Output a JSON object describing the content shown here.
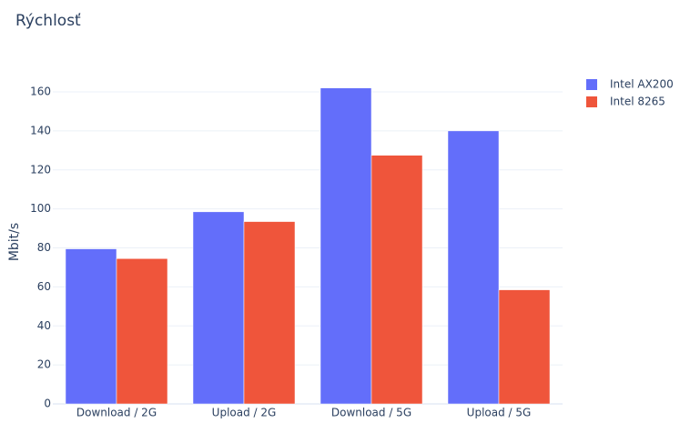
{
  "chart_data": {
    "type": "bar",
    "title": "Rýchlosť",
    "y_label": "Mbit/s",
    "categories": [
      "Download / 2G",
      "Upload / 2G",
      "Download / 5G",
      "Upload / 5G"
    ],
    "series": [
      {
        "name": "Intel AX200",
        "color": "#636efa",
        "values": [
          79.5,
          98.5,
          162,
          140
        ]
      },
      {
        "name": "Intel 8265",
        "color": "#ef553b",
        "values": [
          74.5,
          93.5,
          127.5,
          58.5
        ]
      }
    ],
    "ylim": [
      0,
      170.5
    ],
    "yticks": [
      0,
      20,
      40,
      60,
      80,
      100,
      120,
      140,
      160
    ],
    "grid": true,
    "legend": "right"
  }
}
